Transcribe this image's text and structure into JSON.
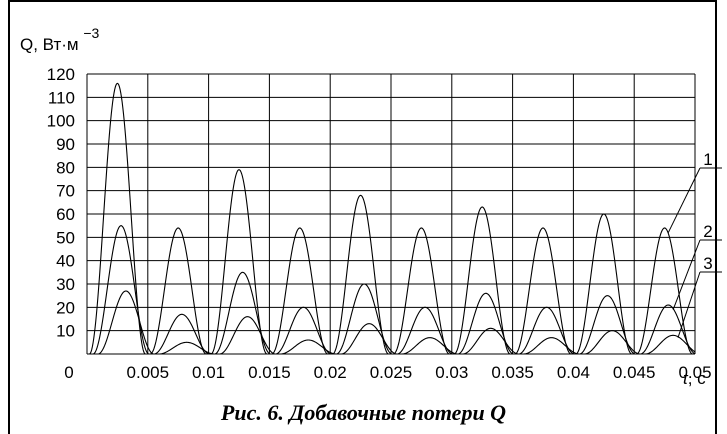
{
  "caption": "Рис. 6. Добавочные потери Q",
  "chart_data": {
    "type": "line",
    "ylabel": "Q, Вт·м",
    "ylabel_exp": "−3",
    "xlabel_italic": "t",
    "xlabel_rest": ", с",
    "xlim": [
      0,
      0.05
    ],
    "ylim": [
      0,
      120
    ],
    "x_ticks": [
      "0",
      "0.005",
      "0.01",
      "0.015",
      "0.02",
      "0.025",
      "0.03",
      "0.035",
      "0.04",
      "0.045",
      "0.05"
    ],
    "y_ticks": [
      "10",
      "20",
      "30",
      "40",
      "50",
      "60",
      "70",
      "80",
      "90",
      "100",
      "110",
      "120"
    ],
    "grid": true,
    "series": [
      {
        "name": "1",
        "peaks": [
          [
            0.0025,
            116
          ],
          [
            0.0075,
            54
          ],
          [
            0.0125,
            79
          ],
          [
            0.0175,
            54
          ],
          [
            0.0225,
            68
          ],
          [
            0.0275,
            54
          ],
          [
            0.0325,
            63
          ],
          [
            0.0375,
            54
          ],
          [
            0.0425,
            60
          ],
          [
            0.0475,
            54
          ]
        ]
      },
      {
        "name": "2",
        "peaks": [
          [
            0.0028,
            55
          ],
          [
            0.0078,
            17
          ],
          [
            0.0128,
            35
          ],
          [
            0.0178,
            20
          ],
          [
            0.0228,
            30
          ],
          [
            0.0278,
            20
          ],
          [
            0.0328,
            26
          ],
          [
            0.0378,
            20
          ],
          [
            0.0428,
            25
          ],
          [
            0.0478,
            21
          ]
        ]
      },
      {
        "name": "3",
        "peaks": [
          [
            0.0032,
            27
          ],
          [
            0.0082,
            5
          ],
          [
            0.0132,
            16
          ],
          [
            0.0182,
            6
          ],
          [
            0.0232,
            13
          ],
          [
            0.0282,
            7
          ],
          [
            0.0332,
            11
          ],
          [
            0.0382,
            7
          ],
          [
            0.0432,
            10
          ],
          [
            0.0482,
            8
          ]
        ]
      }
    ]
  }
}
